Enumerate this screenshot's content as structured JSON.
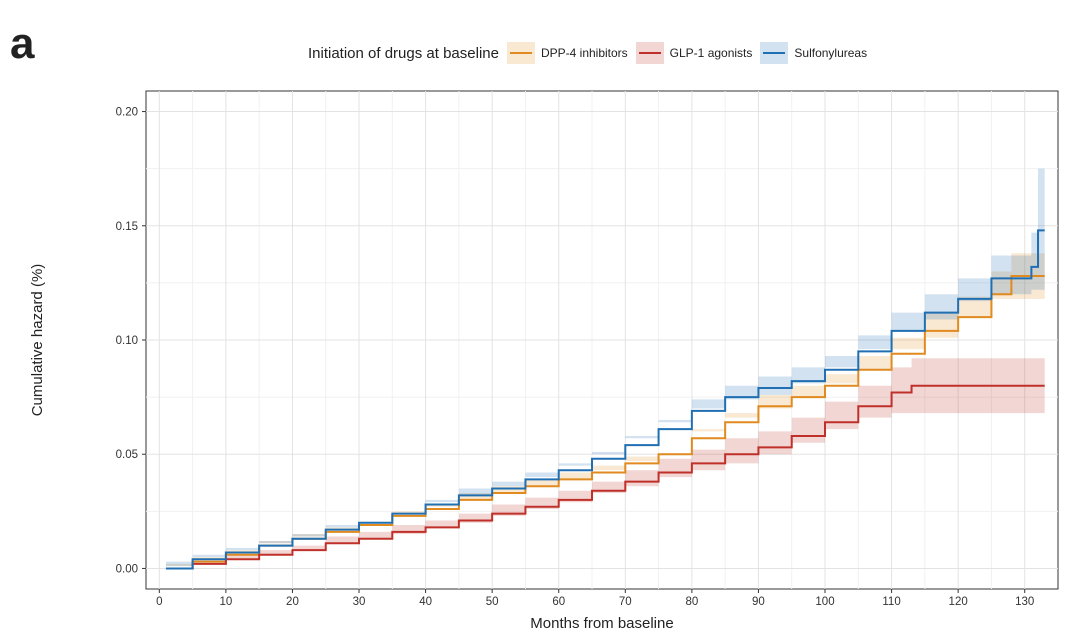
{
  "panel_label": "a",
  "colors": {
    "DPP-4 inhibitors": "#E08A1F",
    "GLP-1 agonists": "#C0302A",
    "Sulfonylureas": "#1F6FB2"
  },
  "chart_data": {
    "type": "line",
    "step": true,
    "title": "",
    "legend_title": "Initiation of drugs at baseline",
    "legend_position": "top",
    "xlabel": "Months from baseline",
    "ylabel": "Cumulative hazard (%)",
    "xlim": [
      -2,
      135
    ],
    "ylim": [
      -0.009,
      0.209
    ],
    "x_ticks": [
      0,
      10,
      20,
      30,
      40,
      50,
      60,
      70,
      80,
      90,
      100,
      110,
      120,
      130
    ],
    "x_tick_labels": [
      "0",
      "10",
      "20",
      "30",
      "40",
      "50",
      "60",
      "70",
      "80",
      "90",
      "100",
      "110",
      "120",
      "130"
    ],
    "y_ticks": [
      0.0,
      0.05,
      0.1,
      0.15,
      0.2
    ],
    "y_tick_labels": [
      "0.00",
      "0.05",
      "0.10",
      "0.15",
      "0.20"
    ],
    "grid": true,
    "series": [
      {
        "name": "DPP-4 inhibitors",
        "x": [
          1,
          5,
          10,
          15,
          20,
          25,
          30,
          35,
          40,
          45,
          50,
          55,
          60,
          65,
          70,
          75,
          80,
          85,
          90,
          95,
          100,
          105,
          110,
          115,
          120,
          125,
          128,
          133
        ],
        "y": [
          0.0,
          0.003,
          0.006,
          0.01,
          0.013,
          0.016,
          0.019,
          0.023,
          0.026,
          0.03,
          0.033,
          0.036,
          0.039,
          0.042,
          0.046,
          0.05,
          0.057,
          0.064,
          0.071,
          0.075,
          0.08,
          0.087,
          0.094,
          0.104,
          0.11,
          0.12,
          0.128,
          0.128
        ],
        "lower": [
          0.0,
          0.002,
          0.005,
          0.008,
          0.011,
          0.014,
          0.017,
          0.021,
          0.024,
          0.027,
          0.03,
          0.033,
          0.036,
          0.039,
          0.043,
          0.047,
          0.053,
          0.06,
          0.066,
          0.07,
          0.075,
          0.081,
          0.087,
          0.096,
          0.101,
          0.11,
          0.118,
          0.118
        ],
        "upper": [
          0.001,
          0.004,
          0.007,
          0.012,
          0.015,
          0.018,
          0.021,
          0.025,
          0.028,
          0.033,
          0.036,
          0.039,
          0.042,
          0.045,
          0.049,
          0.053,
          0.061,
          0.068,
          0.076,
          0.08,
          0.085,
          0.093,
          0.101,
          0.112,
          0.119,
          0.13,
          0.138,
          0.138
        ]
      },
      {
        "name": "GLP-1 agonists",
        "x": [
          1,
          5,
          10,
          15,
          20,
          25,
          30,
          35,
          40,
          45,
          50,
          55,
          60,
          65,
          70,
          75,
          80,
          85,
          90,
          95,
          100,
          105,
          110,
          113,
          120,
          133
        ],
        "y": [
          0.0,
          0.002,
          0.004,
          0.006,
          0.008,
          0.011,
          0.013,
          0.016,
          0.018,
          0.021,
          0.024,
          0.027,
          0.03,
          0.034,
          0.038,
          0.042,
          0.046,
          0.05,
          0.053,
          0.058,
          0.064,
          0.071,
          0.077,
          0.08,
          0.08,
          0.08
        ],
        "lower": [
          0.0,
          0.001,
          0.003,
          0.004,
          0.006,
          0.008,
          0.011,
          0.013,
          0.015,
          0.018,
          0.02,
          0.023,
          0.026,
          0.029,
          0.033,
          0.036,
          0.04,
          0.043,
          0.046,
          0.05,
          0.055,
          0.061,
          0.066,
          0.068,
          0.068,
          0.068
        ],
        "upper": [
          0.001,
          0.003,
          0.006,
          0.008,
          0.01,
          0.014,
          0.016,
          0.019,
          0.021,
          0.024,
          0.028,
          0.031,
          0.034,
          0.038,
          0.043,
          0.048,
          0.052,
          0.057,
          0.06,
          0.066,
          0.073,
          0.08,
          0.088,
          0.092,
          0.092,
          0.092
        ]
      },
      {
        "name": "Sulfonylureas",
        "x": [
          1,
          5,
          10,
          15,
          20,
          25,
          30,
          35,
          40,
          45,
          50,
          55,
          60,
          65,
          70,
          75,
          80,
          85,
          90,
          95,
          100,
          105,
          110,
          115,
          120,
          125,
          131,
          132,
          133
        ],
        "y": [
          0.0,
          0.004,
          0.007,
          0.01,
          0.013,
          0.017,
          0.02,
          0.024,
          0.028,
          0.032,
          0.035,
          0.039,
          0.043,
          0.048,
          0.054,
          0.061,
          0.069,
          0.075,
          0.079,
          0.082,
          0.087,
          0.095,
          0.104,
          0.112,
          0.118,
          0.127,
          0.132,
          0.148,
          0.148
        ],
        "lower": [
          0.0,
          0.003,
          0.006,
          0.009,
          0.012,
          0.015,
          0.018,
          0.022,
          0.026,
          0.029,
          0.032,
          0.036,
          0.04,
          0.045,
          0.05,
          0.057,
          0.064,
          0.07,
          0.074,
          0.076,
          0.081,
          0.088,
          0.096,
          0.104,
          0.109,
          0.117,
          0.12,
          0.122,
          0.122
        ],
        "upper": [
          0.001,
          0.005,
          0.008,
          0.011,
          0.014,
          0.019,
          0.022,
          0.026,
          0.03,
          0.035,
          0.038,
          0.042,
          0.046,
          0.051,
          0.058,
          0.065,
          0.074,
          0.08,
          0.084,
          0.088,
          0.093,
          0.102,
          0.112,
          0.12,
          0.127,
          0.137,
          0.147,
          0.175,
          0.175
        ]
      }
    ]
  }
}
